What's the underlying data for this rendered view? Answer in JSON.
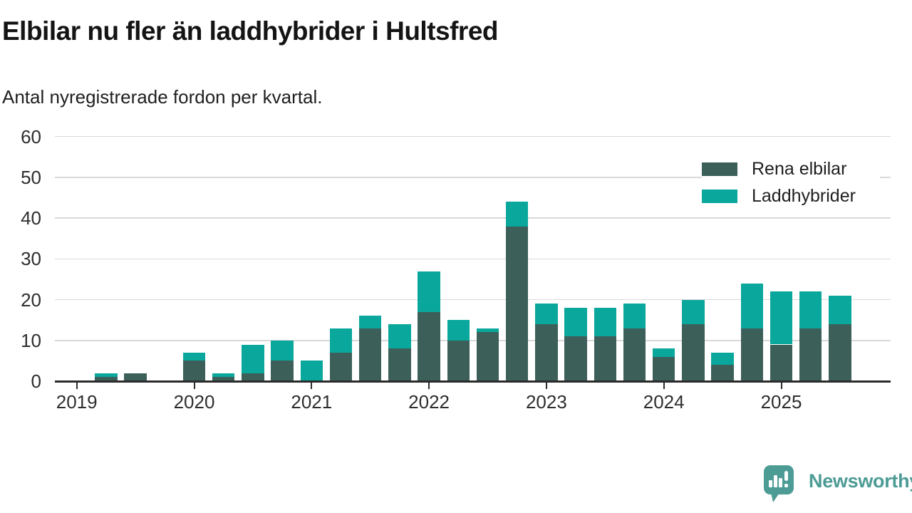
{
  "header": {
    "title": "Elbilar nu fler än laddhybrider i Hultsfred",
    "subtitle": "Antal nyregistrerade fordon per kvartal."
  },
  "chart_data": {
    "type": "bar",
    "stacked": true,
    "title": "Elbilar nu fler än laddhybrider i Hultsfred",
    "subtitle": "Antal nyregistrerade fordon per kvartal.",
    "categories": [
      "2019 Q1",
      "2019 Q2",
      "2019 Q3",
      "2019 Q4",
      "2020 Q1",
      "2020 Q2",
      "2020 Q3",
      "2020 Q4",
      "2021 Q1",
      "2021 Q2",
      "2021 Q3",
      "2021 Q4",
      "2022 Q1",
      "2022 Q2",
      "2022 Q3",
      "2022 Q4",
      "2023 Q1",
      "2023 Q2",
      "2023 Q3",
      "2023 Q4",
      "2024 Q1",
      "2024 Q2",
      "2024 Q3",
      "2024 Q4",
      "2025 Q1",
      "2025 Q2",
      "2025 Q3"
    ],
    "x_tick_labels": [
      "2019",
      "2020",
      "2021",
      "2022",
      "2023",
      "2024",
      "2025"
    ],
    "series": [
      {
        "name": "Rena elbilar",
        "color": "#3d5f5a",
        "values": [
          0,
          1,
          2,
          0,
          5,
          1,
          2,
          5,
          0,
          7,
          13,
          8,
          17,
          10,
          12,
          38,
          14,
          11,
          11,
          13,
          6,
          14,
          4,
          13,
          9,
          13,
          14
        ]
      },
      {
        "name": "Laddhybrider",
        "color": "#0aa79c",
        "values": [
          0,
          1,
          0,
          0,
          2,
          1,
          7,
          5,
          5,
          6,
          3,
          6,
          10,
          5,
          1,
          6,
          5,
          7,
          7,
          6,
          2,
          6,
          3,
          11,
          13,
          9,
          7
        ]
      }
    ],
    "totals": [
      0,
      2,
      2,
      0,
      7,
      2,
      9,
      10,
      5,
      13,
      16,
      14,
      27,
      15,
      13,
      44,
      19,
      18,
      18,
      19,
      8,
      20,
      7,
      24,
      22,
      22,
      21
    ],
    "ylim": [
      0,
      60
    ],
    "yticks": [
      0,
      10,
      20,
      30,
      40,
      50,
      60
    ],
    "grid": "horizontal",
    "legend_position": "top-right",
    "xlabel": "",
    "ylabel": ""
  },
  "footer": {
    "brand": "Newsworthy",
    "brand_color": "#4d9b95"
  }
}
